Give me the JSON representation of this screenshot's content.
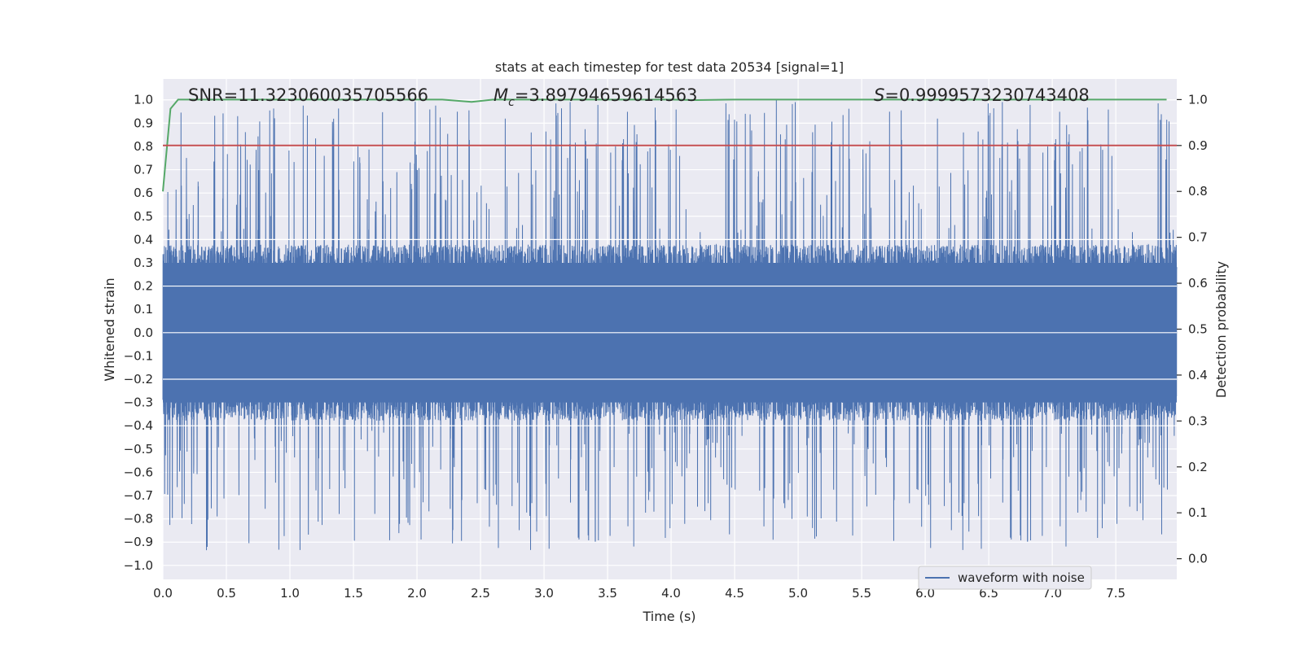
{
  "chart_data": {
    "type": "line",
    "title": "stats at each timestep for test data 20534 [signal=1]",
    "xlabel": "Time (s)",
    "ylabel": "Whitened strain",
    "y2label": "Detection probability",
    "xlim": [
      0.0,
      7.98
    ],
    "ylim": [
      -1.06,
      1.09
    ],
    "y2lim": [
      -0.045,
      1.045
    ],
    "xticks": [
      "0.0",
      "0.5",
      "1.0",
      "1.5",
      "2.0",
      "2.5",
      "3.0",
      "3.5",
      "4.0",
      "4.5",
      "5.0",
      "5.5",
      "6.0",
      "6.5",
      "7.0",
      "7.5"
    ],
    "xtick_values": [
      0.0,
      0.5,
      1.0,
      1.5,
      2.0,
      2.5,
      3.0,
      3.5,
      4.0,
      4.5,
      5.0,
      5.5,
      6.0,
      6.5,
      7.0,
      7.5
    ],
    "yticks": [
      "1.0",
      "0.9",
      "0.8",
      "0.7",
      "0.6",
      "0.5",
      "0.4",
      "0.3",
      "0.2",
      "0.1",
      "0.0",
      "−0.1",
      "−0.2",
      "−0.3",
      "−0.4",
      "−0.5",
      "−0.6",
      "−0.7",
      "−0.8",
      "−0.9",
      "−1.0"
    ],
    "ytick_values": [
      1.0,
      0.9,
      0.8,
      0.7,
      0.6,
      0.5,
      0.4,
      0.3,
      0.2,
      0.1,
      0.0,
      -0.1,
      -0.2,
      -0.3,
      -0.4,
      -0.5,
      -0.6,
      -0.7,
      -0.8,
      -0.9,
      -1.0
    ],
    "y2ticks": [
      "1.0",
      "0.9",
      "0.8",
      "0.7",
      "0.6",
      "0.5",
      "0.4",
      "0.3",
      "0.2",
      "0.1",
      "0.0"
    ],
    "y2tick_values": [
      1.0,
      0.9,
      0.8,
      0.7,
      0.6,
      0.5,
      0.4,
      0.3,
      0.2,
      0.1,
      0.0
    ],
    "annotations": {
      "snr": "SNR=11.323060035705566",
      "mc_symbol": "M",
      "mc_sub": "c",
      "mc_value": "=3.89794659614563",
      "s_symbol": "S",
      "s_value": "=0.9999573230743408"
    },
    "legend": {
      "label": "waveform with noise",
      "position": "lower-right"
    },
    "series": [
      {
        "name": "waveform with noise",
        "axis": "left",
        "color": "#4c72b0",
        "samples": 8000,
        "envelope": {
          "max_mean": 0.42,
          "min_mean": -0.42,
          "peak_max": 1.0,
          "peak_min": -0.94
        }
      },
      {
        "name": "detection probability",
        "axis": "right",
        "color": "#55a868",
        "x": [
          0.0,
          0.06,
          0.12,
          0.5,
          1.0,
          1.5,
          2.0,
          2.2,
          2.43,
          2.6,
          3.0,
          3.5,
          4.0,
          4.2,
          4.5,
          5.0,
          5.5,
          6.0,
          7.0,
          7.9
        ],
        "values": [
          0.8,
          0.98,
          1.0,
          1.0,
          1.0,
          1.0,
          1.0,
          1.0,
          0.995,
          1.0,
          1.0,
          1.0,
          1.0,
          0.999,
          1.0,
          1.0,
          1.0,
          1.0,
          1.0,
          1.0
        ]
      },
      {
        "name": "threshold",
        "axis": "right",
        "color": "#c44e52",
        "values": [
          0.9
        ]
      }
    ]
  }
}
